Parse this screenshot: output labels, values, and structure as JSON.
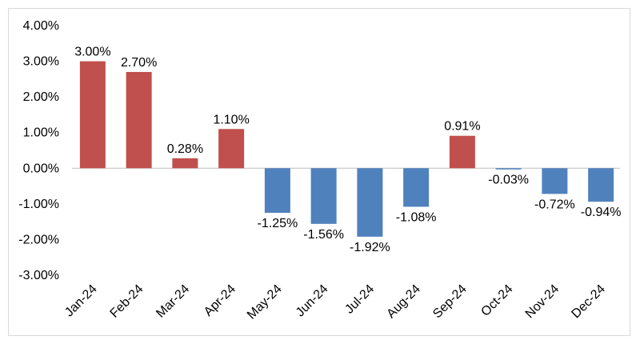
{
  "chart_data": {
    "type": "bar",
    "categories": [
      "Jan-24",
      "Feb-24",
      "Mar-24",
      "Apr-24",
      "May-24",
      "Jun-24",
      "Jul-24",
      "Aug-24",
      "Sep-24",
      "Oct-24",
      "Nov-24",
      "Dec-24"
    ],
    "values": [
      3.0,
      2.7,
      0.28,
      1.1,
      -1.25,
      -1.56,
      -1.92,
      -1.08,
      0.91,
      -0.03,
      -0.72,
      -0.94
    ],
    "data_labels": [
      "3.00%",
      "2.70%",
      "0.28%",
      "1.10%",
      "-1.25%",
      "-1.56%",
      "-1.92%",
      "-1.08%",
      "0.91%",
      "-0.03%",
      "-0.72%",
      "-0.94%"
    ],
    "title": "",
    "xlabel": "",
    "ylabel": "",
    "ylim": [
      -3,
      4
    ],
    "y_ticks": [
      4,
      3,
      2,
      1,
      0,
      -1,
      -2,
      -3
    ],
    "y_tick_labels": [
      "4.00%",
      "3.00%",
      "2.00%",
      "1.00%",
      "0.00%",
      "-1.00%",
      "-2.00%",
      "-3.00%"
    ],
    "grid": false,
    "legend": "none",
    "colors": {
      "positive": "#c0504d",
      "negative": "#4f81bd"
    }
  }
}
